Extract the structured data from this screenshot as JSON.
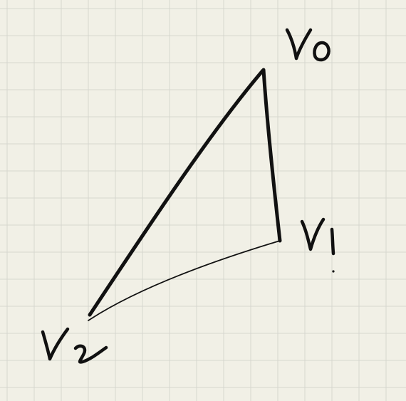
{
  "colors": {
    "paper": "#f1f0e6",
    "grid": "#d6d7cf",
    "ink": "#111111"
  },
  "vertices": {
    "v0": {
      "label": "V0"
    },
    "v1": {
      "label": "V1"
    },
    "v2": {
      "label": "V2"
    }
  }
}
